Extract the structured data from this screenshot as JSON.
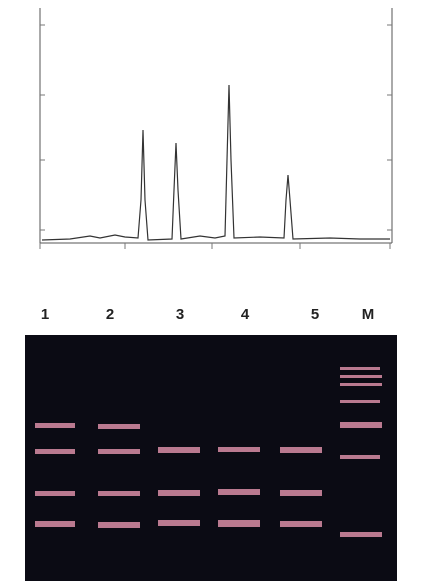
{
  "lanes": {
    "labels": [
      "1",
      "2",
      "3",
      "4",
      "5",
      "M"
    ]
  }
}
